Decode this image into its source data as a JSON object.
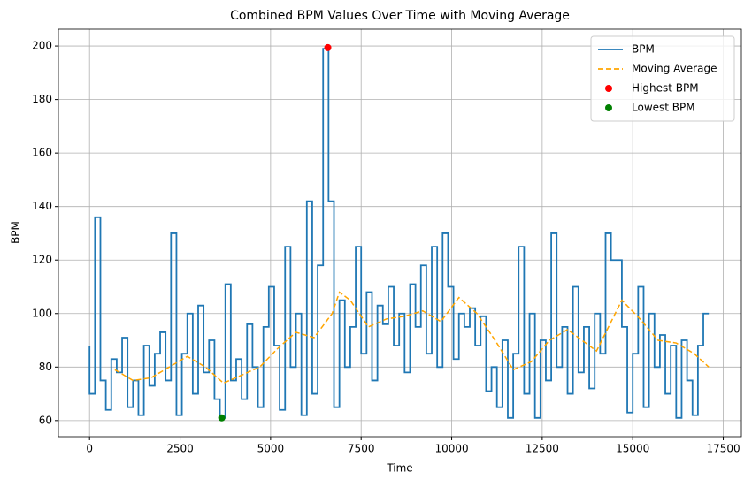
{
  "chart_data": {
    "type": "line",
    "title": "Combined BPM Values Over Time with Moving Average",
    "x_label": "Time",
    "y_label": "BPM",
    "xlim": [
      -860,
      18000
    ],
    "ylim": [
      54,
      206.3
    ],
    "xticks": [
      0,
      2500,
      5000,
      7500,
      10000,
      12500,
      15000,
      17500
    ],
    "yticks": [
      60,
      80,
      100,
      120,
      140,
      160,
      180,
      200
    ],
    "grid": true,
    "legend": "upper right",
    "series": [
      {
        "name": "BPM",
        "color": "#1f77b4",
        "style": "steps",
        "x": [
          0,
          150,
          300,
          450,
          600,
          750,
          900,
          1050,
          1200,
          1350,
          1500,
          1650,
          1800,
          1950,
          2100,
          2250,
          2400,
          2550,
          2700,
          2850,
          3000,
          3150,
          3300,
          3450,
          3600,
          3750,
          3900,
          4050,
          4200,
          4350,
          4500,
          4650,
          4800,
          4950,
          5100,
          5250,
          5400,
          5550,
          5700,
          5850,
          6000,
          6150,
          6300,
          6450,
          6600,
          6750,
          6900,
          7050,
          7200,
          7350,
          7500,
          7650,
          7800,
          7950,
          8100,
          8250,
          8400,
          8550,
          8700,
          8850,
          9000,
          9150,
          9300,
          9450,
          9600,
          9750,
          9900,
          10050,
          10200,
          10350,
          10500,
          10650,
          10800,
          10950,
          11100,
          11250,
          11400,
          11550,
          11700,
          11850,
          12000,
          12150,
          12300,
          12450,
          12600,
          12750,
          12900,
          13050,
          13200,
          13350,
          13500,
          13650,
          13800,
          13950,
          14100,
          14250,
          14400,
          14550,
          14700,
          14850,
          15000,
          15150,
          15300,
          15450,
          15600,
          15750,
          15900,
          16050,
          16200,
          16350,
          16500,
          16650,
          16800,
          16950,
          17100
        ],
        "values": [
          88,
          70,
          136,
          75,
          64,
          83,
          78,
          91,
          65,
          75,
          62,
          88,
          73,
          85,
          93,
          75,
          130,
          62,
          85,
          100,
          70,
          103,
          78,
          90,
          68,
          61,
          111,
          75,
          83,
          68,
          96,
          80,
          65,
          95,
          110,
          88,
          64,
          125,
          80,
          100,
          62,
          142,
          70,
          118,
          199,
          142,
          65,
          105,
          80,
          95,
          125,
          85,
          108,
          75,
          103,
          96,
          110,
          88,
          100,
          78,
          111,
          95,
          118,
          85,
          125,
          80,
          130,
          110,
          83,
          100,
          95,
          102,
          88,
          99,
          71,
          80,
          65,
          90,
          61,
          85,
          125,
          70,
          100,
          61,
          90,
          75,
          130,
          80,
          95,
          70,
          110,
          78,
          95,
          72,
          100,
          85,
          130,
          120,
          120,
          95,
          63,
          85,
          110,
          65,
          100,
          80,
          92,
          70,
          88,
          61,
          90,
          75,
          62,
          88,
          100
        ]
      },
      {
        "name": "Moving Average",
        "color": "#ffa500",
        "style": "dashed",
        "x": [
          700,
          1200,
          1700,
          2200,
          2700,
          3200,
          3700,
          4200,
          4700,
          5200,
          5700,
          6200,
          6700,
          6900,
          7200,
          7700,
          8200,
          8700,
          9200,
          9700,
          10200,
          10700,
          11200,
          11700,
          12200,
          12700,
          13200,
          13700,
          14000,
          14700,
          15200,
          15700,
          16200,
          16700,
          17100
        ],
        "values": [
          79,
          75,
          76,
          80,
          84,
          80,
          74,
          77,
          80,
          87,
          93,
          91,
          100,
          108,
          105,
          95,
          98,
          99,
          101,
          97,
          106,
          100,
          90,
          79,
          82,
          90,
          94,
          89,
          86,
          105,
          98,
          90,
          89,
          85,
          80
        ]
      },
      {
        "name": "Highest BPM",
        "color": "#ff0000",
        "style": "point",
        "x": [
          6580
        ],
        "values": [
          199.4
        ]
      },
      {
        "name": "Lowest BPM",
        "color": "#008000",
        "style": "point",
        "x": [
          3650
        ],
        "values": [
          61
        ]
      }
    ]
  }
}
